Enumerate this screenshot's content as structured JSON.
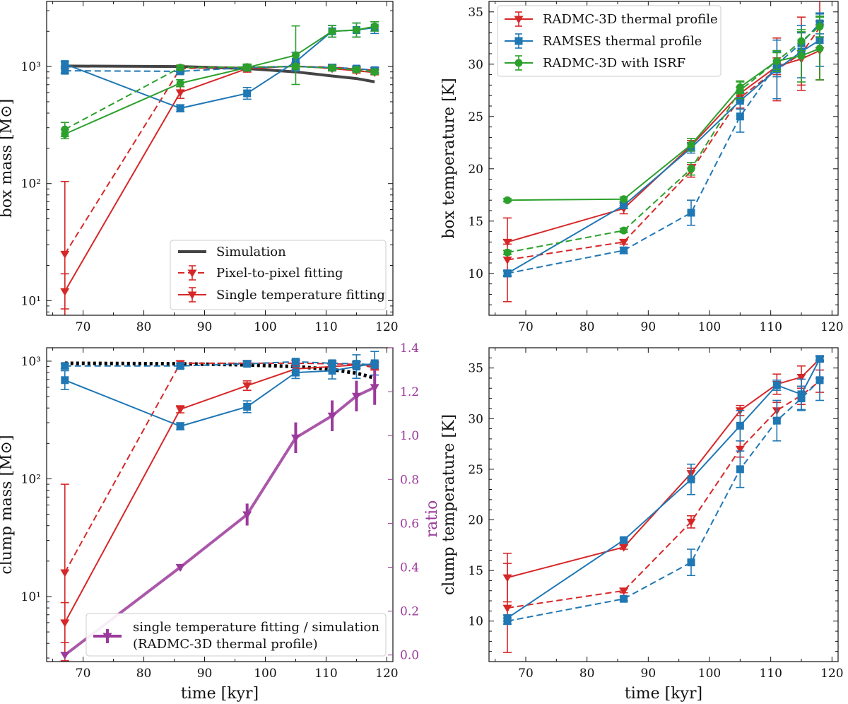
{
  "colors": {
    "red": "#d62728",
    "blue": "#1f77b4",
    "green": "#2ca02c",
    "purple": "#9b3a9b",
    "sim": "#444444",
    "black": "#000000"
  },
  "legends": {
    "box_mass": [
      "Simulation",
      "Pixel-to-pixel fitting",
      "Single temperature fitting"
    ],
    "box_temp": [
      "RADMC-3D thermal profile",
      "RAMSES thermal profile",
      "RADMC-3D with ISRF"
    ],
    "clump_mass": [
      "single temperature fitting / simulation",
      "(RADMC-3D thermal profile)"
    ]
  },
  "chart_data": [
    {
      "id": "box_mass",
      "type": "line",
      "ylog": true,
      "xlabel": "",
      "ylabel": "box mass [M⊙]",
      "xlim": [
        64,
        121
      ],
      "ylim": [
        7.5,
        3600
      ],
      "xticks": [
        70,
        80,
        90,
        100,
        110,
        120
      ],
      "yticks": [
        10,
        100,
        1000
      ],
      "ytick_labels": [
        "10¹",
        "10²",
        "10³"
      ],
      "series": [
        {
          "name": "Simulation",
          "color": "sim",
          "style": "solid",
          "width": 4,
          "marker": "none",
          "x": [
            67,
            86,
            97,
            105,
            111,
            115,
            118
          ],
          "y": [
            1010,
            1000,
            960,
            900,
            830,
            790,
            740
          ]
        },
        {
          "name": "RADMC-3D single temperature",
          "color": "red",
          "style": "solid",
          "marker": "tri",
          "x": [
            67,
            86,
            97,
            105,
            111,
            115,
            118
          ],
          "y": [
            12,
            600,
            960,
            1010,
            960,
            920,
            890
          ],
          "err": [
            0.15,
            0.05,
            0.03,
            0.03,
            0.02,
            0.02,
            0.02
          ]
        },
        {
          "name": "RADMC-3D pixel-to-pixel",
          "color": "red",
          "style": "dashed",
          "marker": "tri",
          "x": [
            67,
            86,
            97,
            105,
            111,
            115,
            118
          ],
          "y": [
            25,
            960,
            990,
            1000,
            990,
            950,
            930
          ],
          "err": [
            0.62,
            0.03,
            0.02,
            0.02,
            0.02,
            0.02,
            0.02
          ]
        },
        {
          "name": "RAMSES single temperature",
          "color": "blue",
          "style": "solid",
          "marker": "sq",
          "x": [
            67,
            86,
            97,
            105,
            111,
            115,
            118
          ],
          "y": [
            1050,
            440,
            590,
            1100,
            2000,
            2050,
            2150
          ],
          "err": [
            0.02,
            0.03,
            0.05,
            0.08,
            0.05,
            0.06,
            0.05
          ]
        },
        {
          "name": "RAMSES pixel-to-pixel",
          "color": "blue",
          "style": "dashed",
          "marker": "sq",
          "x": [
            67,
            86,
            97,
            105,
            111,
            115,
            118
          ],
          "y": [
            920,
            910,
            980,
            1000,
            980,
            960,
            930
          ],
          "err": [
            0.02,
            0.02,
            0.02,
            0.02,
            0.02,
            0.02,
            0.02
          ]
        },
        {
          "name": "ISRF single temperature",
          "color": "green",
          "style": "solid",
          "marker": "circ",
          "x": [
            67,
            86,
            97,
            105,
            111,
            115,
            118
          ],
          "y": [
            265,
            720,
            980,
            1250,
            2000,
            2050,
            2200
          ],
          "err": [
            0.04,
            0.03,
            0.03,
            0.25,
            0.05,
            0.06,
            0.04
          ]
        },
        {
          "name": "ISRF pixel-to-pixel",
          "color": "green",
          "style": "dashed",
          "marker": "circ",
          "x": [
            67,
            86,
            97,
            105,
            111,
            115,
            118
          ],
          "y": [
            290,
            980,
            990,
            1000,
            970,
            940,
            900
          ],
          "err": [
            0.06,
            0.02,
            0.02,
            0.02,
            0.02,
            0.02,
            0.02
          ]
        }
      ]
    },
    {
      "id": "box_temp",
      "type": "line",
      "ylog": false,
      "xlabel": "",
      "ylabel": "box temperature [K]",
      "xlim": [
        64,
        121
      ],
      "ylim": [
        6,
        36
      ],
      "xticks": [
        70,
        80,
        90,
        100,
        110,
        120
      ],
      "yticks": [
        10,
        15,
        20,
        25,
        30,
        35
      ],
      "ytick_labels": [
        "10",
        "15",
        "20",
        "25",
        "30",
        "35"
      ],
      "series": [
        {
          "name": "RADMC-3D single",
          "color": "red",
          "style": "solid",
          "marker": "tri",
          "x": [
            67,
            86,
            97,
            105,
            111,
            115,
            118
          ],
          "y": [
            13,
            16.2,
            22.2,
            27.2,
            29.8,
            30.5,
            31.3
          ],
          "err": [
            0.2,
            0.5,
            0.5,
            0.6,
            0.8,
            2.5,
            2.8
          ]
        },
        {
          "name": "RADMC-3D pixel",
          "color": "red",
          "style": "dashed",
          "marker": "tri",
          "x": [
            67,
            86,
            97,
            105,
            111,
            115,
            118
          ],
          "y": [
            11.3,
            13,
            19.8,
            26.8,
            29.5,
            31,
            33.5
          ],
          "err": [
            4,
            0.2,
            0.6,
            1,
            3,
            3.5,
            5
          ]
        },
        {
          "name": "RAMSES single",
          "color": "blue",
          "style": "solid",
          "marker": "sq",
          "x": [
            67,
            86,
            97,
            105,
            111,
            115,
            118
          ],
          "y": [
            10,
            16.5,
            22,
            26.5,
            29.5,
            31.2,
            32.3
          ],
          "err": [
            0.2,
            0.3,
            0.5,
            0.8,
            2.8,
            2.5,
            2.5
          ]
        },
        {
          "name": "RAMSES pixel",
          "color": "blue",
          "style": "dashed",
          "marker": "sq",
          "x": [
            67,
            86,
            97,
            105,
            111,
            115,
            118
          ],
          "y": [
            10,
            12.2,
            15.8,
            25,
            30,
            32,
            33.9
          ],
          "err": [
            0.3,
            0.3,
            1.2,
            1.5,
            1.2,
            1,
            1
          ]
        },
        {
          "name": "ISRF single",
          "color": "green",
          "style": "solid",
          "marker": "circ",
          "x": [
            67,
            86,
            97,
            105,
            111,
            115,
            118
          ],
          "y": [
            17,
            17.1,
            22.3,
            27.8,
            30.3,
            30.8,
            31.5
          ],
          "err": [
            0.15,
            0.2,
            0.6,
            0.6,
            1,
            2.5,
            3
          ]
        },
        {
          "name": "ISRF pixel",
          "color": "green",
          "style": "dashed",
          "marker": "circ",
          "x": [
            67,
            86,
            97,
            105,
            111,
            115,
            118
          ],
          "y": [
            12,
            14.1,
            20,
            27.5,
            30.3,
            32.2,
            33.6
          ],
          "err": [
            0.2,
            0.2,
            0.6,
            0.8,
            0.8,
            0.9,
            1
          ]
        }
      ]
    },
    {
      "id": "clump_mass",
      "type": "line",
      "ylog": true,
      "xlabel": "time [kyr]",
      "ylabel": "clump mass [M⊙]",
      "y2label": "ratio",
      "xlim": [
        64,
        121
      ],
      "ylim": [
        2.8,
        1300
      ],
      "y2lim": [
        -0.03,
        1.4
      ],
      "xticks": [
        70,
        80,
        90,
        100,
        110,
        120
      ],
      "yticks": [
        10,
        100,
        1000
      ],
      "ytick_labels": [
        "10¹",
        "10²",
        "10³"
      ],
      "y2ticks": [
        0.0,
        0.2,
        0.4,
        0.6,
        0.8,
        1.0,
        1.2,
        1.4
      ],
      "y2tick_labels": [
        "0.0",
        "0.2",
        "0.4",
        "0.6",
        "0.8",
        "1.0",
        "1.2",
        "1.4"
      ],
      "series": [
        {
          "name": "Simulation",
          "color": "black",
          "style": "dotted",
          "width": 5,
          "marker": "none",
          "x": [
            67,
            86,
            97,
            105,
            111,
            115,
            118
          ],
          "y": [
            960,
            950,
            930,
            900,
            850,
            790,
            720
          ]
        },
        {
          "name": "RADMC-3D single",
          "color": "red",
          "style": "solid",
          "marker": "tri",
          "x": [
            67,
            86,
            97,
            105,
            111,
            115,
            118
          ],
          "y": [
            6,
            390,
            620,
            860,
            900,
            930,
            920
          ],
          "err": [
            0.17,
            0.03,
            0.04,
            0.03,
            0.03,
            0.03,
            0.03
          ]
        },
        {
          "name": "RADMC-3D pixel",
          "color": "red",
          "style": "dashed",
          "marker": "tri",
          "x": [
            67,
            86,
            97,
            105,
            111,
            115,
            118
          ],
          "y": [
            16,
            960,
            960,
            960,
            950,
            940,
            880
          ],
          "err": [
            0.75,
            0.02,
            0.02,
            0.02,
            0.02,
            0.02,
            0.02
          ]
        },
        {
          "name": "RAMSES single",
          "color": "blue",
          "style": "solid",
          "marker": "sq",
          "x": [
            67,
            86,
            97,
            105,
            111,
            115,
            118
          ],
          "y": [
            690,
            280,
            410,
            800,
            830,
            900,
            960
          ],
          "err": [
            0.08,
            0.03,
            0.05,
            0.05,
            0.07,
            0.1,
            0.1
          ]
        },
        {
          "name": "RAMSES pixel",
          "color": "blue",
          "style": "dashed",
          "marker": "sq",
          "x": [
            67,
            86,
            97,
            105,
            111,
            115,
            118
          ],
          "y": [
            910,
            910,
            950,
            990,
            960,
            950,
            930
          ],
          "err": [
            0.02,
            0.02,
            0.02,
            0.02,
            0.02,
            0.02,
            0.02
          ]
        },
        {
          "name": "single temperature fitting / simulation",
          "color": "purple",
          "style": "solid",
          "width": 4,
          "marker": "tri",
          "axis": "y2",
          "x": [
            67,
            86,
            97,
            105,
            111,
            115,
            118
          ],
          "y": [
            0.0,
            0.4,
            0.64,
            0.99,
            1.09,
            1.18,
            1.22
          ],
          "err": [
            0.005,
            0.015,
            0.05,
            0.07,
            0.07,
            0.07,
            0.08
          ]
        }
      ]
    },
    {
      "id": "clump_temp",
      "type": "line",
      "ylog": false,
      "xlabel": "time [kyr]",
      "ylabel": "clump temperature [K]",
      "xlim": [
        64,
        121
      ],
      "ylim": [
        6,
        37
      ],
      "xticks": [
        70,
        80,
        90,
        100,
        110,
        120
      ],
      "yticks": [
        10,
        15,
        20,
        25,
        30,
        35
      ],
      "ytick_labels": [
        "10",
        "15",
        "20",
        "25",
        "30",
        "35"
      ],
      "series": [
        {
          "name": "RADMC-3D single",
          "color": "red",
          "style": "solid",
          "marker": "tri",
          "x": [
            67,
            86,
            97,
            105,
            111,
            115,
            118
          ],
          "y": [
            14.3,
            17.3,
            24.6,
            30.8,
            33.4,
            34.1,
            35.9
          ],
          "err": [
            2.4,
            0.2,
            0.5,
            0.5,
            1,
            1.1,
            0.3
          ]
        },
        {
          "name": "RADMC-3D pixel",
          "color": "red",
          "style": "dashed",
          "marker": "tri",
          "x": [
            67,
            86,
            97,
            105,
            111,
            115,
            118
          ],
          "y": [
            11.3,
            13,
            19.8,
            27,
            30.8,
            32.3,
            33.7
          ],
          "err": [
            4.4,
            0.2,
            0.6,
            0.8,
            0.8,
            0.9,
            1.1
          ]
        },
        {
          "name": "RAMSES single",
          "color": "blue",
          "style": "solid",
          "marker": "sq",
          "x": [
            67,
            86,
            97,
            105,
            111,
            115,
            118
          ],
          "y": [
            10.3,
            18,
            24,
            29.3,
            33.3,
            32.4,
            35.9
          ],
          "err": [
            0.3,
            0.2,
            1.5,
            1.5,
            0.5,
            1.5,
            0.2
          ]
        },
        {
          "name": "RAMSES pixel",
          "color": "blue",
          "style": "dashed",
          "marker": "sq",
          "x": [
            67,
            86,
            97,
            105,
            111,
            115,
            118
          ],
          "y": [
            10,
            12.2,
            15.8,
            25,
            29.8,
            32,
            33.8
          ],
          "err": [
            0.3,
            0.2,
            1.3,
            1.8,
            2,
            1.2,
            2
          ]
        }
      ]
    }
  ]
}
